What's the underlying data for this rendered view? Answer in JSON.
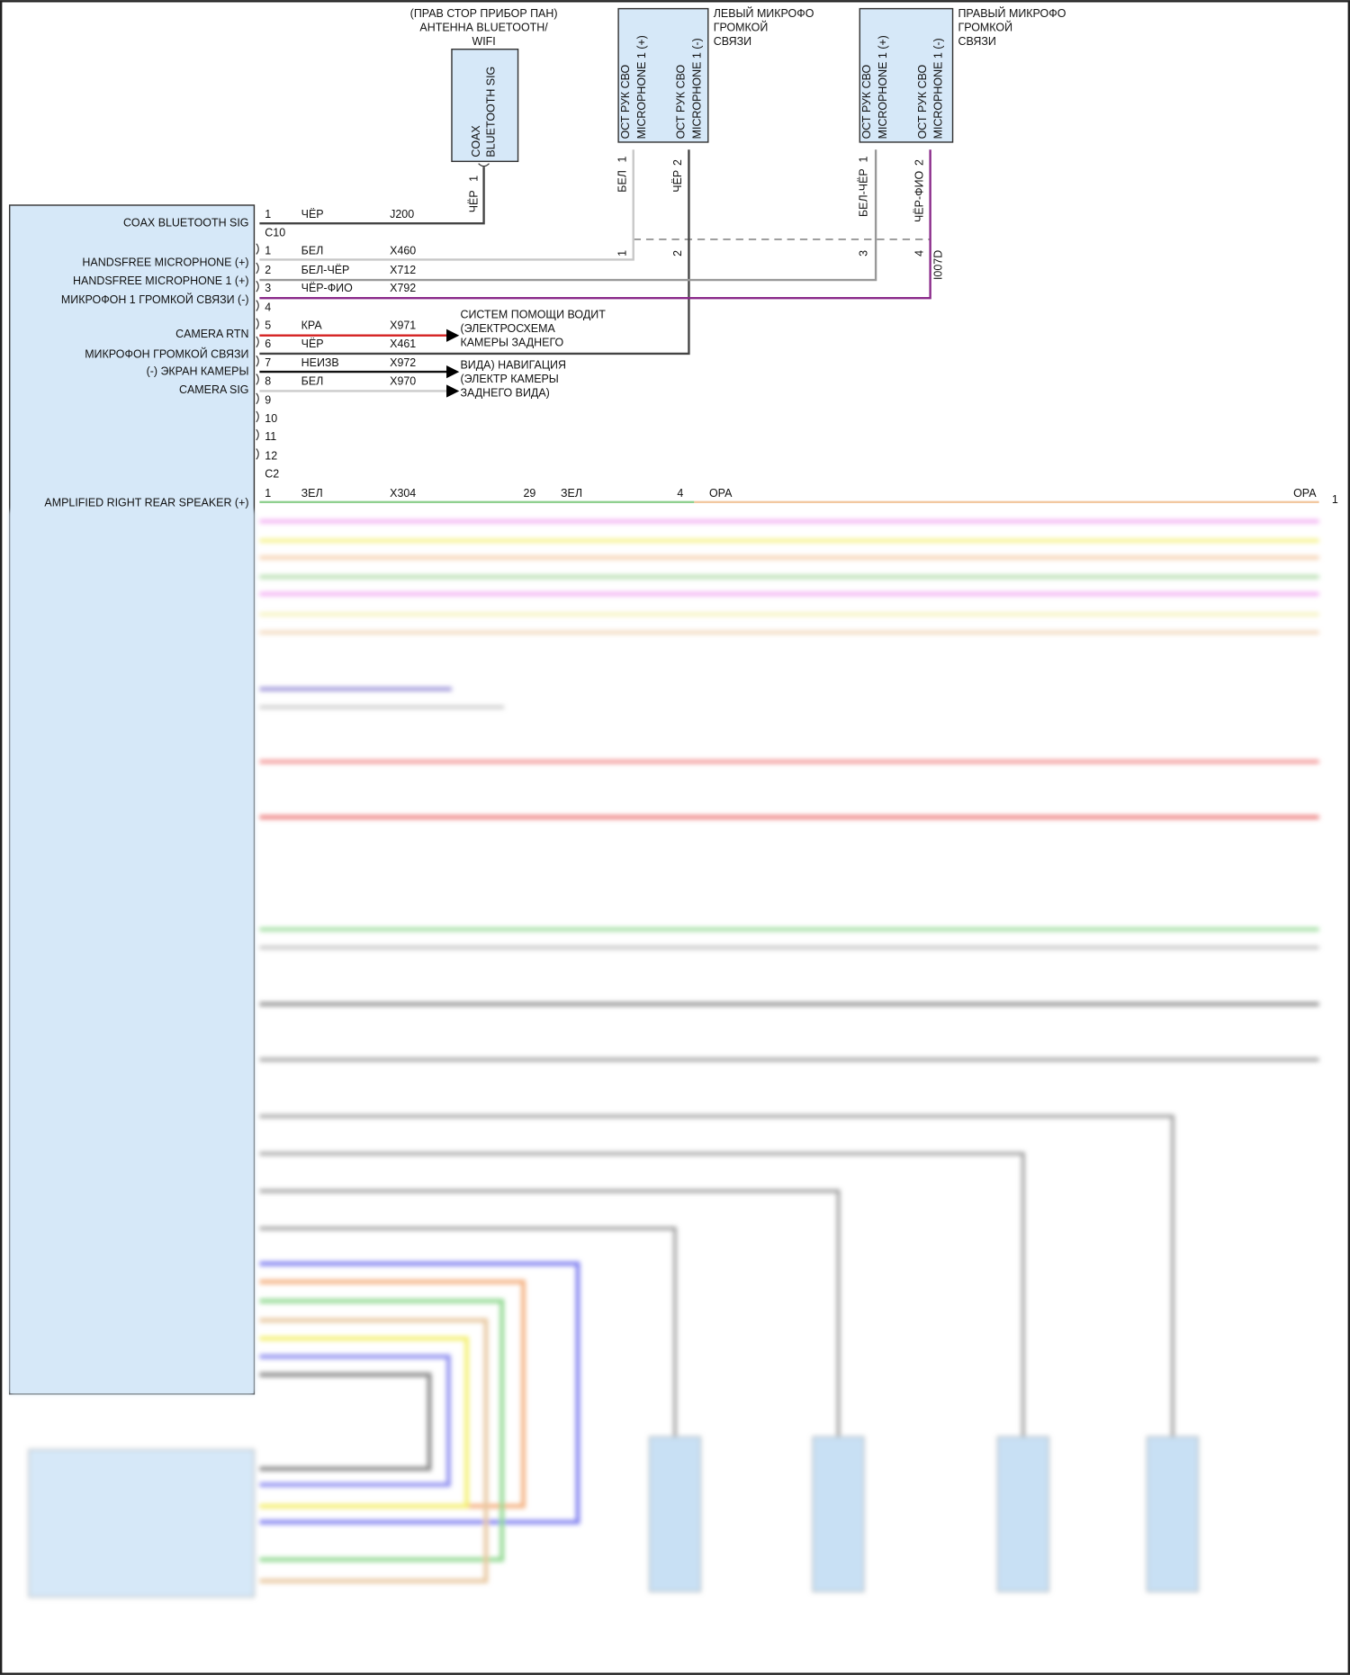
{
  "antenna": {
    "title": [
      "(ПРАВ СТОР ПРИБОР ПАН)",
      "АНТЕННА BLUETOOTH/",
      "WIFI"
    ],
    "pin_text": [
      "COAX",
      "BLUETOOTH SIG"
    ],
    "pin": "1",
    "wire_color": "ЧЁР"
  },
  "left_mic": {
    "title": [
      "ЛЕВЫЙ МИКРОФО",
      "ГРОМКОЙ",
      "СВЯЗИ"
    ],
    "pins": [
      {
        "text": [
          "ОСТ РУК СВО",
          "MICROPHONE 1 (+)"
        ],
        "pin": "1",
        "wire_color": "БЕЛ",
        "splice": "1"
      },
      {
        "text": [
          "ОСТ РУК СВО",
          "MICROPHONE 1 (-)"
        ],
        "pin": "2",
        "wire_color": "ЧЁР",
        "splice": "2"
      }
    ]
  },
  "right_mic": {
    "title": [
      "ПРАВЫЙ МИКРОФО",
      "ГРОМКОЙ",
      "СВЯЗИ"
    ],
    "pins": [
      {
        "text": [
          "ОСТ РУК СВО",
          "MICROPHONE 1 (+)"
        ],
        "pin": "1",
        "wire_color": "БЕЛ-ЧЁР",
        "splice": "3"
      },
      {
        "text": [
          "ОСТ РУК СВО",
          "MICROPHONE 1 (-)"
        ],
        "pin": "2",
        "wire_color": "ЧЁР-ФИО",
        "splice": "4"
      }
    ],
    "connector_id": "I007D"
  },
  "module": {
    "connectors": [
      "C10",
      "C2"
    ],
    "c10_rows": [
      {
        "pin": "1",
        "label": "COAX BLUETOOTH SIG",
        "wire": "ЧЁР",
        "circuit": "J200"
      }
    ],
    "c2_rows": [
      {
        "pin": "1",
        "label": "HANDSFREE MICROPHONE (+)",
        "wire": "БЕЛ",
        "circuit": "X460"
      },
      {
        "pin": "2",
        "label": "HANDSFREE MICROPHONE 1 (+)",
        "wire": "БЕЛ-ЧЁР",
        "circuit": "X712"
      },
      {
        "pin": "3",
        "label": "МИКРОФОН 1 ГРОМКОЙ СВЯЗИ (-)",
        "wire": "ЧЁР-ФИО",
        "circuit": "X792"
      },
      {
        "pin": "4",
        "label": "",
        "wire": "",
        "circuit": ""
      },
      {
        "pin": "5",
        "label": "CAMERA RTN",
        "wire": "КРА",
        "circuit": "X971"
      },
      {
        "pin": "6",
        "label": "МИКРОФОН ГРОМКОЙ СВЯЗИ",
        "wire": "ЧЁР",
        "circuit": "X461"
      },
      {
        "pin": "7",
        "label": "(-) ЭКРАН КАМЕРЫ",
        "wire": "НЕИЗВ",
        "circuit": "X972"
      },
      {
        "pin": "8",
        "label": "CAMERA SIG",
        "wire": "БЕЛ",
        "circuit": "X970"
      },
      {
        "pin": "9"
      },
      {
        "pin": "10"
      },
      {
        "pin": "11"
      },
      {
        "pin": "12"
      }
    ],
    "next_row": {
      "pin": "1",
      "label": "AMPLIFIED RIGHT REAR SPEAKER (+)",
      "wire": "ЗЕЛ",
      "circuit": "X304",
      "splice1_pin": "29",
      "splice1_wire": "ЗЕЛ",
      "splice2_pin": "4",
      "splice2_wire": "ОРА",
      "end_wire": "ОРА",
      "end_pin": "1"
    }
  },
  "destinations": {
    "driver_assist": [
      "СИСТЕМ ПОМОЩИ ВОДИТ",
      "(ЭЛЕКТРОСХЕМА",
      "КАМЕРЫ ЗАДНЕГО"
    ],
    "navigation": [
      "ВИДА) НАВИГАЦИЯ",
      "(ЭЛЕКТР КАМЕРЫ",
      "ЗАДНЕГО ВИДА)"
    ]
  },
  "colors": {
    "block_fill": "#d6e8f8",
    "red": "#d42020",
    "purple": "#8a2a8a",
    "grey": "#c8c8c8",
    "dark": "#444444"
  }
}
